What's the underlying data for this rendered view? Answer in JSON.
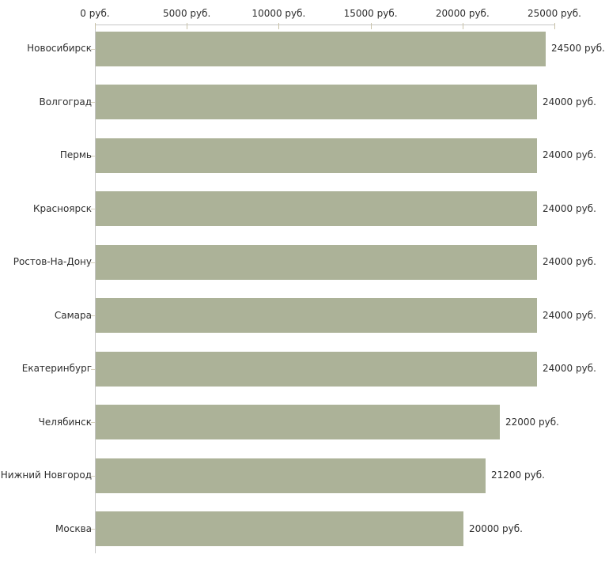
{
  "chart_data": {
    "type": "bar",
    "orientation": "horizontal",
    "categories": [
      "Новосибирск",
      "Волгоград",
      "Пермь",
      "Красноярск",
      "Ростов-На-Дону",
      "Самара",
      "Екатеринбург",
      "Челябинск",
      "Нижний Новгород",
      "Москва"
    ],
    "values": [
      24500,
      24000,
      24000,
      24000,
      24000,
      24000,
      24000,
      22000,
      21200,
      20000
    ],
    "value_labels": [
      "24500 руб.",
      "24000 руб.",
      "24000 руб.",
      "24000 руб.",
      "24000 руб.",
      "24000 руб.",
      "24000 руб.",
      "22000 руб.",
      "21200 руб.",
      "20000 руб."
    ],
    "x_ticks": [
      {
        "value": 0,
        "label": "0 руб."
      },
      {
        "value": 5000,
        "label": "5000 руб."
      },
      {
        "value": 10000,
        "label": "10000 руб."
      },
      {
        "value": 15000,
        "label": "15000 руб."
      },
      {
        "value": 20000,
        "label": "20000 руб."
      },
      {
        "value": 25000,
        "label": "25000 руб."
      }
    ],
    "xlim": [
      0,
      25000
    ],
    "unit": "руб.",
    "grid": false,
    "legend": "none",
    "colors": {
      "bar": "#acb298",
      "axis_line": "#c6c6c6",
      "major_tick": "#c8c2a8",
      "category_tick": "#d6d0bc",
      "text": "#2e2e2e",
      "background": "#ffffff"
    }
  }
}
